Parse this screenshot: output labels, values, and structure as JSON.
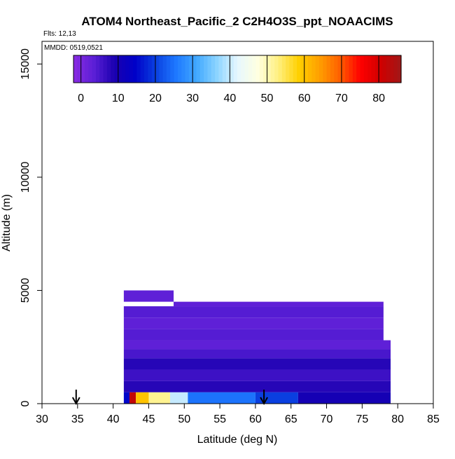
{
  "chart_data": {
    "type": "heatmap",
    "title": "ATOM4 Northeast_Pacific_2 C2H4O3S_ppt_NOAACIMS",
    "flights_note": "Flts: 12,13",
    "date_note": "MMDD: 0519,0521",
    "xlabel": "Latitude (deg N)",
    "ylabel": "Altitude (m)",
    "xlim": [
      30,
      85
    ],
    "ylim": [
      0,
      16000
    ],
    "x_ticks": [
      "30",
      "35",
      "40",
      "45",
      "50",
      "55",
      "60",
      "65",
      "70",
      "75",
      "80",
      "85"
    ],
    "y_ticks": [
      "0",
      "5000",
      "10000",
      "15000"
    ],
    "colorbar": {
      "min": -2,
      "max": 86,
      "tick_labels": [
        "0",
        "10",
        "20",
        "30",
        "40",
        "50",
        "60",
        "70",
        "80"
      ],
      "colors": [
        "#8a2be2",
        "#5b1fd6",
        "#1a00b0",
        "#0000c8",
        "#0a3fe0",
        "#1e78ff",
        "#40a8ff",
        "#8cd4ff",
        "#e6f7ff",
        "#ffffe0",
        "#fff080",
        "#ffd000",
        "#ffa000",
        "#ff6000",
        "#ff0000",
        "#d00000",
        "#a01818"
      ]
    },
    "arrows_latitude": [
      34.8,
      61.2
    ],
    "cells": [
      {
        "lat": [
          41.5,
          48.5
        ],
        "alt": [
          4500,
          5000
        ],
        "value": 3
      },
      {
        "lat": [
          48.5,
          78
        ],
        "alt": [
          4300,
          4500
        ],
        "value": 3
      },
      {
        "lat": [
          41.5,
          78
        ],
        "alt": [
          3800,
          4300
        ],
        "value": 4
      },
      {
        "lat": [
          41.5,
          78
        ],
        "alt": [
          3300,
          3800
        ],
        "value": 3
      },
      {
        "lat": [
          41.5,
          78
        ],
        "alt": [
          2800,
          3300
        ],
        "value": 4
      },
      {
        "lat": [
          41.5,
          79
        ],
        "alt": [
          2400,
          2800
        ],
        "value": 3
      },
      {
        "lat": [
          41.5,
          79
        ],
        "alt": [
          2000,
          2400
        ],
        "value": 5
      },
      {
        "lat": [
          41.5,
          79
        ],
        "alt": [
          1500,
          2000
        ],
        "value": 8
      },
      {
        "lat": [
          41.5,
          79
        ],
        "alt": [
          1000,
          1500
        ],
        "value": 6
      },
      {
        "lat": [
          41.5,
          79
        ],
        "alt": [
          500,
          1000
        ],
        "value": 8
      },
      {
        "lat": [
          41.5,
          42.3
        ],
        "alt": [
          0,
          500
        ],
        "value": 15
      },
      {
        "lat": [
          42.3,
          43.2
        ],
        "alt": [
          0,
          500
        ],
        "value": 82
      },
      {
        "lat": [
          43.2,
          45
        ],
        "alt": [
          0,
          500
        ],
        "value": 60
      },
      {
        "lat": [
          45,
          48
        ],
        "alt": [
          0,
          500
        ],
        "value": 52
      },
      {
        "lat": [
          48,
          50.5
        ],
        "alt": [
          0,
          500
        ],
        "value": 40
      },
      {
        "lat": [
          50.5,
          60
        ],
        "alt": [
          0,
          500
        ],
        "value": 25
      },
      {
        "lat": [
          60,
          66
        ],
        "alt": [
          0,
          500
        ],
        "value": 20
      },
      {
        "lat": [
          66,
          79
        ],
        "alt": [
          0,
          500
        ],
        "value": 10
      }
    ]
  }
}
